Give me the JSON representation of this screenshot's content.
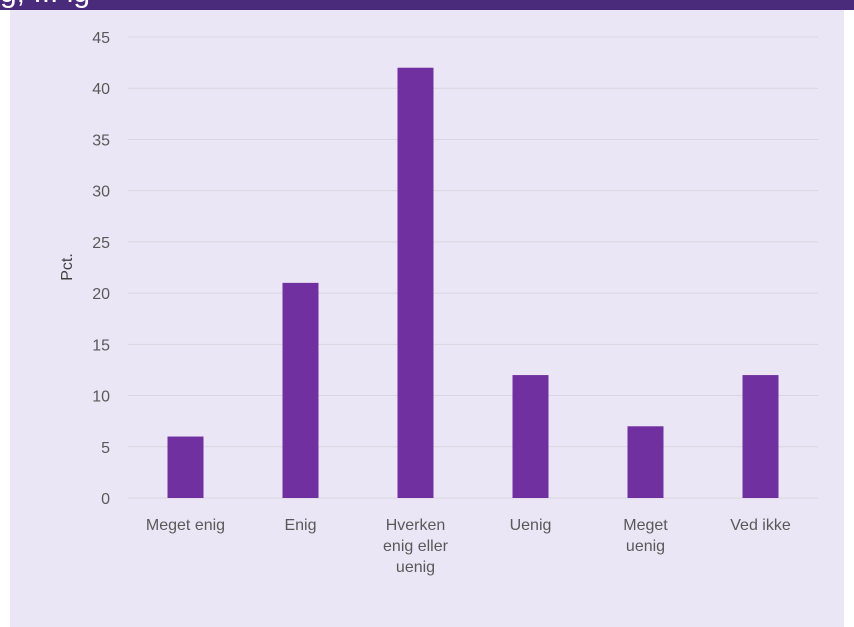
{
  "header": {
    "partial_text": "g, ... ig"
  },
  "colors": {
    "bar": "#7030a0",
    "panel_bg": "#ebe6f5",
    "grid": "#d9d6df",
    "header_bar": "#4a2a7a"
  },
  "chart_data": {
    "type": "bar",
    "categories": [
      [
        "Meget enig"
      ],
      [
        "Enig"
      ],
      [
        "Hverken",
        "enig eller",
        "uenig"
      ],
      [
        "Uenig"
      ],
      [
        "Meget",
        "uenig"
      ],
      [
        "Ved ikke"
      ]
    ],
    "values": [
      6,
      21,
      42,
      12,
      7,
      12
    ],
    "ylabel": "Pct.",
    "ylim": [
      0,
      45
    ],
    "yticks": [
      0,
      5,
      10,
      15,
      20,
      25,
      30,
      35,
      40,
      45
    ],
    "grid": true,
    "legend": "none"
  }
}
